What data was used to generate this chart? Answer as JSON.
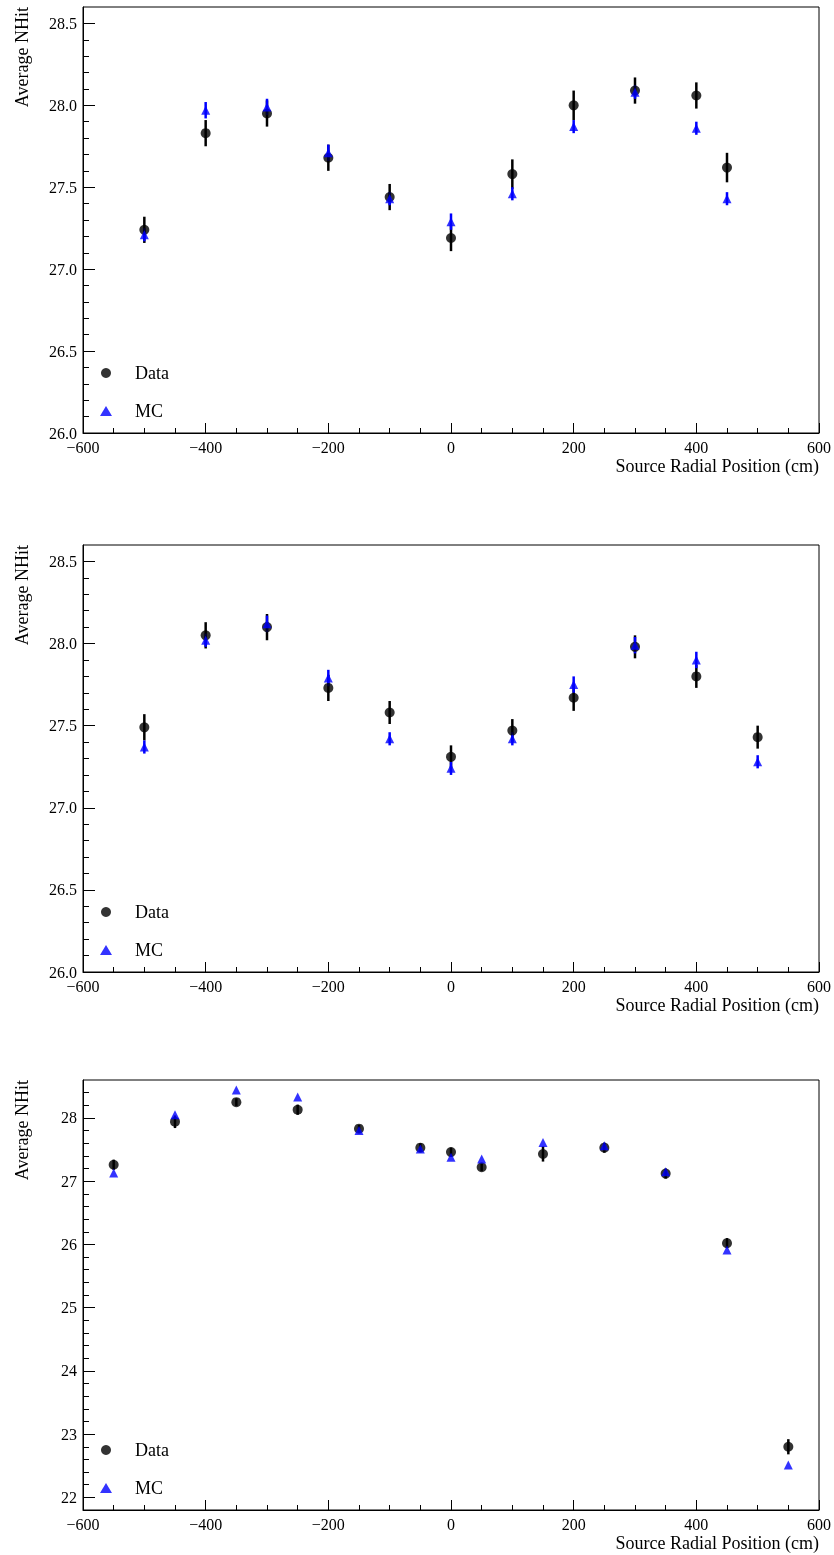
{
  "chart_data": [
    {
      "type": "scatter",
      "xlabel": "Source Radial Position (cm)",
      "ylabel": "Average NHit",
      "xlim": [
        -600,
        600
      ],
      "xticks": [
        {
          "value": -600,
          "label": "−600"
        },
        {
          "value": -400,
          "label": "−400"
        },
        {
          "value": -200,
          "label": "−200"
        },
        0,
        200,
        400,
        600
      ],
      "ylim": [
        26.0,
        28.6
      ],
      "yticks": [
        {
          "value": 26,
          "label": "26.0"
        },
        26.5,
        {
          "value": 27,
          "label": "27.0"
        },
        27.5,
        {
          "value": 28,
          "label": "28.0"
        },
        28.5
      ],
      "grid": false,
      "legend": "bottom left",
      "series": [
        {
          "name": "Data",
          "color": "#000000",
          "marker": "circle",
          "x": [
            -500,
            -400,
            -300,
            -200,
            -100,
            0,
            100,
            200,
            300,
            400,
            450
          ],
          "values": [
            27.24,
            27.83,
            27.95,
            27.68,
            27.44,
            27.19,
            27.58,
            28.0,
            28.09,
            28.06,
            27.62
          ],
          "errors": [
            0.08,
            0.08,
            0.08,
            0.08,
            0.08,
            0.08,
            0.09,
            0.09,
            0.08,
            0.08,
            0.09
          ]
        },
        {
          "name": "MC",
          "color": "#0000ff",
          "marker": "triangle",
          "x": [
            -500,
            -400,
            -300,
            -200,
            -100,
            0,
            100,
            200,
            300,
            400,
            450
          ],
          "values": [
            27.21,
            27.97,
            27.99,
            27.71,
            27.43,
            27.29,
            27.46,
            27.87,
            28.08,
            27.86,
            27.43
          ],
          "errors": [
            0.04,
            0.05,
            0.05,
            0.05,
            0.04,
            0.05,
            0.04,
            0.04,
            0.04,
            0.04,
            0.04
          ]
        }
      ]
    },
    {
      "type": "scatter",
      "xlabel": "Source Radial Position (cm)",
      "ylabel": "Average NHit",
      "xlim": [
        -600,
        600
      ],
      "xticks": [
        {
          "value": -600,
          "label": "−600"
        },
        {
          "value": -400,
          "label": "−400"
        },
        {
          "value": -200,
          "label": "−200"
        },
        0,
        200,
        400,
        600
      ],
      "ylim": [
        26.0,
        28.6
      ],
      "yticks": [
        {
          "value": 26,
          "label": "26.0"
        },
        26.5,
        {
          "value": 27,
          "label": "27.0"
        },
        27.5,
        {
          "value": 28,
          "label": "28.0"
        },
        28.5
      ],
      "grid": false,
      "legend": "bottom left",
      "series": [
        {
          "name": "Data",
          "color": "#000000",
          "marker": "circle",
          "x": [
            -500,
            -400,
            -300,
            -200,
            -100,
            0,
            100,
            200,
            300,
            400,
            500
          ],
          "values": [
            27.49,
            28.05,
            28.1,
            27.73,
            27.58,
            27.31,
            27.47,
            27.67,
            27.98,
            27.8,
            27.43
          ],
          "errors": [
            0.08,
            0.08,
            0.08,
            0.08,
            0.07,
            0.07,
            0.07,
            0.08,
            0.07,
            0.07,
            0.07
          ]
        },
        {
          "name": "MC",
          "color": "#0000ff",
          "marker": "triangle",
          "x": [
            -500,
            -400,
            -300,
            -200,
            -100,
            0,
            100,
            200,
            300,
            400,
            500
          ],
          "values": [
            27.37,
            28.02,
            28.12,
            27.79,
            27.42,
            27.24,
            27.42,
            27.75,
            27.99,
            27.9,
            27.28
          ],
          "errors": [
            0.04,
            0.04,
            0.05,
            0.05,
            0.04,
            0.04,
            0.04,
            0.05,
            0.05,
            0.05,
            0.04
          ]
        }
      ]
    },
    {
      "type": "scatter",
      "xlabel": "Source Radial Position (cm)",
      "ylabel": "Average NHit",
      "xlim": [
        -600,
        600
      ],
      "xticks": [
        {
          "value": -600,
          "label": "−600"
        },
        {
          "value": -400,
          "label": "−400"
        },
        {
          "value": -200,
          "label": "−200"
        },
        0,
        200,
        400,
        600
      ],
      "ylim": [
        21.8,
        28.6
      ],
      "yticks": [
        22,
        23,
        24,
        25,
        26,
        27,
        28
      ],
      "grid": false,
      "legend": "bottom left",
      "series": [
        {
          "name": "Data",
          "color": "#000000",
          "marker": "circle",
          "x": [
            -550,
            -450,
            -350,
            -250,
            -150,
            -50,
            0,
            50,
            150,
            250,
            350,
            450,
            550
          ],
          "values": [
            27.26,
            27.94,
            28.25,
            28.13,
            27.83,
            27.53,
            27.46,
            27.22,
            27.43,
            27.53,
            27.12,
            26.02,
            22.8
          ],
          "errors": [
            0.08,
            0.1,
            0.06,
            0.08,
            0.06,
            0.07,
            0.07,
            0.06,
            0.12,
            0.08,
            0.08,
            0.08,
            0.12
          ]
        },
        {
          "name": "MC",
          "color": "#0000ff",
          "marker": "triangle",
          "x": [
            -550,
            -450,
            -350,
            -250,
            -150,
            -50,
            0,
            50,
            150,
            250,
            350,
            450,
            550
          ],
          "values": [
            27.13,
            28.05,
            28.44,
            28.33,
            27.8,
            27.51,
            27.38,
            27.35,
            27.61,
            27.56,
            27.15,
            25.91,
            22.51
          ]
        }
      ]
    }
  ]
}
